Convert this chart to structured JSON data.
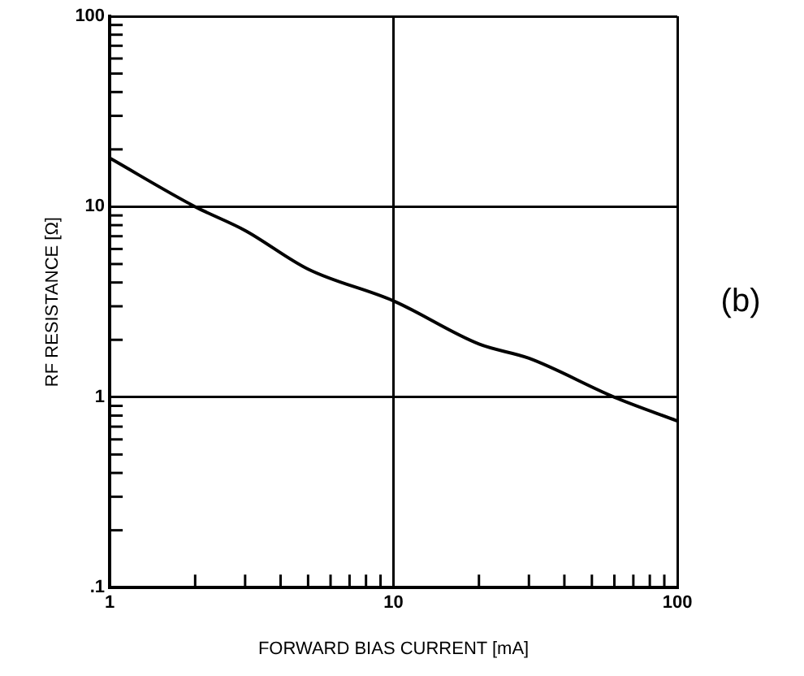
{
  "chart_data": {
    "type": "line",
    "xlabel": "FORWARD BIAS CURRENT [mA]",
    "ylabel": "RF RESISTANCE [Ω]",
    "annotations": [
      "(b)"
    ],
    "x": [
      1,
      2,
      3,
      5,
      10,
      20,
      30,
      60,
      100
    ],
    "series": [
      {
        "color": "#000000",
        "values": [
          18,
          10,
          7.5,
          4.7,
          3.2,
          1.9,
          1.6,
          1.0,
          0.75
        ]
      }
    ],
    "log": "xy",
    "xlim": [
      1,
      100
    ],
    "ylim": [
      0.1,
      100
    ],
    "xticks": [
      1,
      {
        "value": 2,
        "label": null
      },
      {
        "value": 3,
        "label": null
      },
      {
        "value": 4,
        "label": null
      },
      {
        "value": 5,
        "label": null
      },
      {
        "value": 6,
        "label": null
      },
      {
        "value": 7,
        "label": null
      },
      {
        "value": 8,
        "label": null
      },
      {
        "value": 9,
        "label": null
      },
      10,
      {
        "value": 20,
        "label": null
      },
      {
        "value": 30,
        "label": null
      },
      {
        "value": 40,
        "label": null
      },
      {
        "value": 50,
        "label": null
      },
      {
        "value": 60,
        "label": null
      },
      {
        "value": 70,
        "label": null
      },
      {
        "value": 80,
        "label": null
      },
      {
        "value": 90,
        "label": null
      },
      100
    ],
    "yticks": [
      {
        "value": 0.1,
        "label": ".1"
      },
      {
        "value": 0.2,
        "label": null
      },
      {
        "value": 0.3,
        "label": null
      },
      {
        "value": 0.4,
        "label": null
      },
      {
        "value": 0.5,
        "label": null
      },
      {
        "value": 0.6,
        "label": null
      },
      {
        "value": 0.7,
        "label": null
      },
      {
        "value": 0.8,
        "label": null
      },
      {
        "value": 0.9,
        "label": null
      },
      1,
      {
        "value": 2,
        "label": null
      },
      {
        "value": 3,
        "label": null
      },
      {
        "value": 4,
        "label": null
      },
      {
        "value": 5,
        "label": null
      },
      {
        "value": 6,
        "label": null
      },
      {
        "value": 7,
        "label": null
      },
      {
        "value": 8,
        "label": null
      },
      {
        "value": 9,
        "label": null
      },
      10,
      {
        "value": 20,
        "label": null
      },
      {
        "value": 30,
        "label": null
      },
      {
        "value": 40,
        "label": null
      },
      {
        "value": 50,
        "label": null
      },
      {
        "value": 60,
        "label": null
      },
      {
        "value": 70,
        "label": null
      },
      {
        "value": 80,
        "label": null
      },
      {
        "value": 90,
        "label": null
      },
      100
    ],
    "grid": true,
    "marker": "none",
    "line_style": "solid",
    "legend": false
  }
}
